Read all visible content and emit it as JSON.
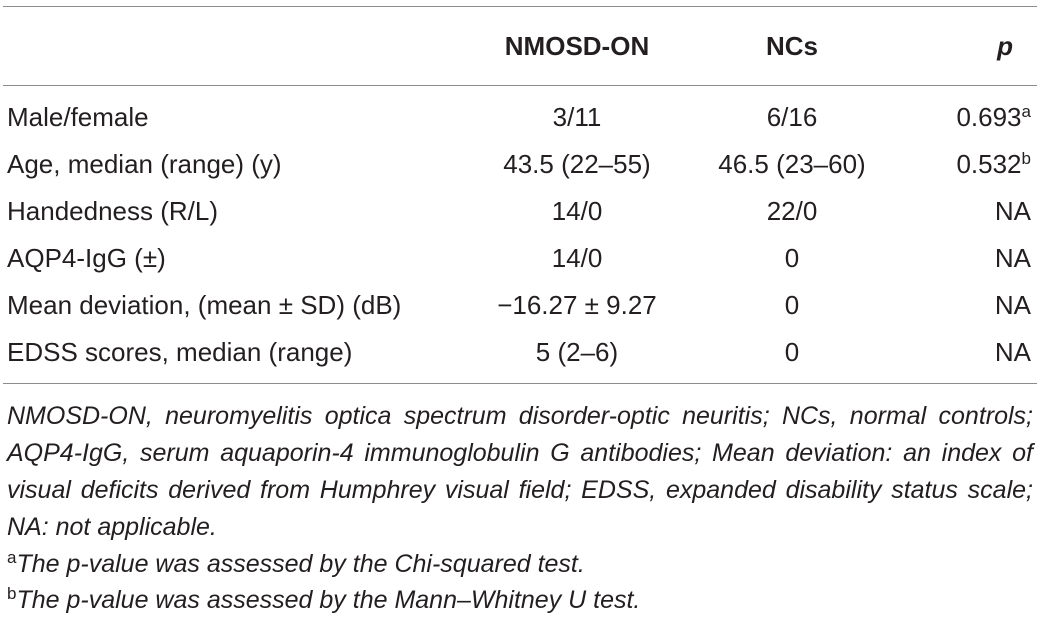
{
  "table": {
    "columns": [
      "",
      "NMOSD-ON",
      "NCs",
      "p"
    ],
    "rows": [
      {
        "label": "Male/female",
        "nmosd_on": "3/11",
        "ncs": "6/16",
        "p": "0.693",
        "p_sup": "a"
      },
      {
        "label": "Age, median (range) (y)",
        "nmosd_on": "43.5 (22–55)",
        "ncs": "46.5 (23–60)",
        "p": "0.532",
        "p_sup": "b"
      },
      {
        "label": "Handedness (R/L)",
        "nmosd_on": "14/0",
        "ncs": "22/0",
        "p": "NA",
        "p_sup": ""
      },
      {
        "label": "AQP4-IgG (±)",
        "nmosd_on": "14/0",
        "ncs": "0",
        "p": "NA",
        "p_sup": ""
      },
      {
        "label": "Mean deviation, (mean ± SD) (dB)",
        "nmosd_on": "−16.27 ± 9.27",
        "ncs": "0",
        "p": "NA",
        "p_sup": ""
      },
      {
        "label": "EDSS scores, median (range)",
        "nmosd_on": "5 (2–6)",
        "ncs": "0",
        "p": "NA",
        "p_sup": ""
      }
    ]
  },
  "footnotes": {
    "abbreviations": "NMOSD-ON, neuromyelitis optica spectrum disorder-optic neuritis; NCs, normal controls; AQP4-IgG, serum aquaporin-4 immunoglobulin G antibodies; Mean deviation: an index of visual deficits derived from Humphrey visual field; EDSS, expanded disability status scale; NA: not applicable.",
    "notes": [
      {
        "mark": "a",
        "text": "The p-value was assessed by the Chi-squared test."
      },
      {
        "mark": "b",
        "text": "The p-value was assessed by the Mann–Whitney U test."
      }
    ]
  }
}
